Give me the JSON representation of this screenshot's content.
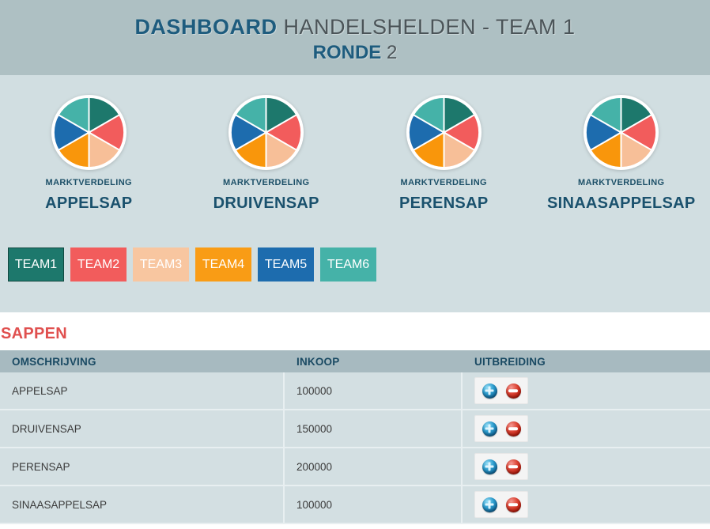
{
  "header": {
    "title_bold": "DASHBOARD",
    "title_rest": "HANDELSHELDEN - TEAM 1",
    "round_label": "RONDE",
    "round_value": "2"
  },
  "chart_data": [
    {
      "type": "pie",
      "title": "APPELSAP",
      "label": "MARKTVERDELING",
      "categories": [
        "TEAM1",
        "TEAM2",
        "TEAM3",
        "TEAM4",
        "TEAM5",
        "TEAM6"
      ],
      "values": [
        16.67,
        16.67,
        16.67,
        16.67,
        16.67,
        16.67
      ],
      "colors": [
        "#1d786c",
        "#f25c5c",
        "#f7bf98",
        "#f9960b",
        "#1d6cae",
        "#45b2a8"
      ],
      "legend": "none"
    },
    {
      "type": "pie",
      "title": "DRUIVENSAP",
      "label": "MARKTVERDELING",
      "categories": [
        "TEAM1",
        "TEAM2",
        "TEAM3",
        "TEAM4",
        "TEAM5",
        "TEAM6"
      ],
      "values": [
        16.67,
        16.67,
        16.67,
        16.67,
        16.67,
        16.67
      ],
      "colors": [
        "#1d786c",
        "#f25c5c",
        "#f7bf98",
        "#f9960b",
        "#1d6cae",
        "#45b2a8"
      ],
      "legend": "none"
    },
    {
      "type": "pie",
      "title": "PERENSAP",
      "label": "MARKTVERDELING",
      "categories": [
        "TEAM1",
        "TEAM2",
        "TEAM3",
        "TEAM4",
        "TEAM5",
        "TEAM6"
      ],
      "values": [
        16.67,
        16.67,
        16.67,
        16.67,
        16.67,
        16.67
      ],
      "colors": [
        "#1d786c",
        "#f25c5c",
        "#f7bf98",
        "#f9960b",
        "#1d6cae",
        "#45b2a8"
      ],
      "legend": "none"
    },
    {
      "type": "pie",
      "title": "SINAASAPPELSAP",
      "label": "MARKTVERDELING",
      "categories": [
        "TEAM1",
        "TEAM2",
        "TEAM3",
        "TEAM4",
        "TEAM5",
        "TEAM6"
      ],
      "values": [
        16.67,
        16.67,
        16.67,
        16.67,
        16.67,
        16.67
      ],
      "colors": [
        "#1d786c",
        "#f25c5c",
        "#f7bf98",
        "#f9960b",
        "#1d6cae",
        "#45b2a8"
      ],
      "legend": "none"
    }
  ],
  "teams": {
    "buttons": [
      {
        "label": "TEAM1",
        "color": "#1d786c",
        "active": true
      },
      {
        "label": "TEAM2",
        "color": "#f25c5c",
        "active": false
      },
      {
        "label": "TEAM3",
        "color": "#f8c6a0",
        "active": false
      },
      {
        "label": "TEAM4",
        "color": "#f99c15",
        "active": false
      },
      {
        "label": "TEAM5",
        "color": "#1d6cae",
        "active": false
      },
      {
        "label": "TEAM6",
        "color": "#45b2a8",
        "active": false
      }
    ]
  },
  "section": {
    "title": "SAPPEN"
  },
  "table": {
    "columns": [
      "OMSCHRIJVING",
      "INKOOP",
      "UITBREIDING"
    ],
    "rows": [
      {
        "omschrijving": "APPELSAP",
        "inkoop": "100000"
      },
      {
        "omschrijving": "DRUIVENSAP",
        "inkoop": "150000"
      },
      {
        "omschrijving": "PERENSAP",
        "inkoop": "200000"
      },
      {
        "omschrijving": "SINAASAPPELSAP",
        "inkoop": "100000"
      }
    ]
  },
  "colors": {
    "header_band": "#aec0c3",
    "charts_band": "#d1dee1",
    "navy_heading": "#1a516d",
    "accent_heading": "#e0504f",
    "table_header_bg": "#a7bac0",
    "row_bg": "#d3dfe2"
  }
}
